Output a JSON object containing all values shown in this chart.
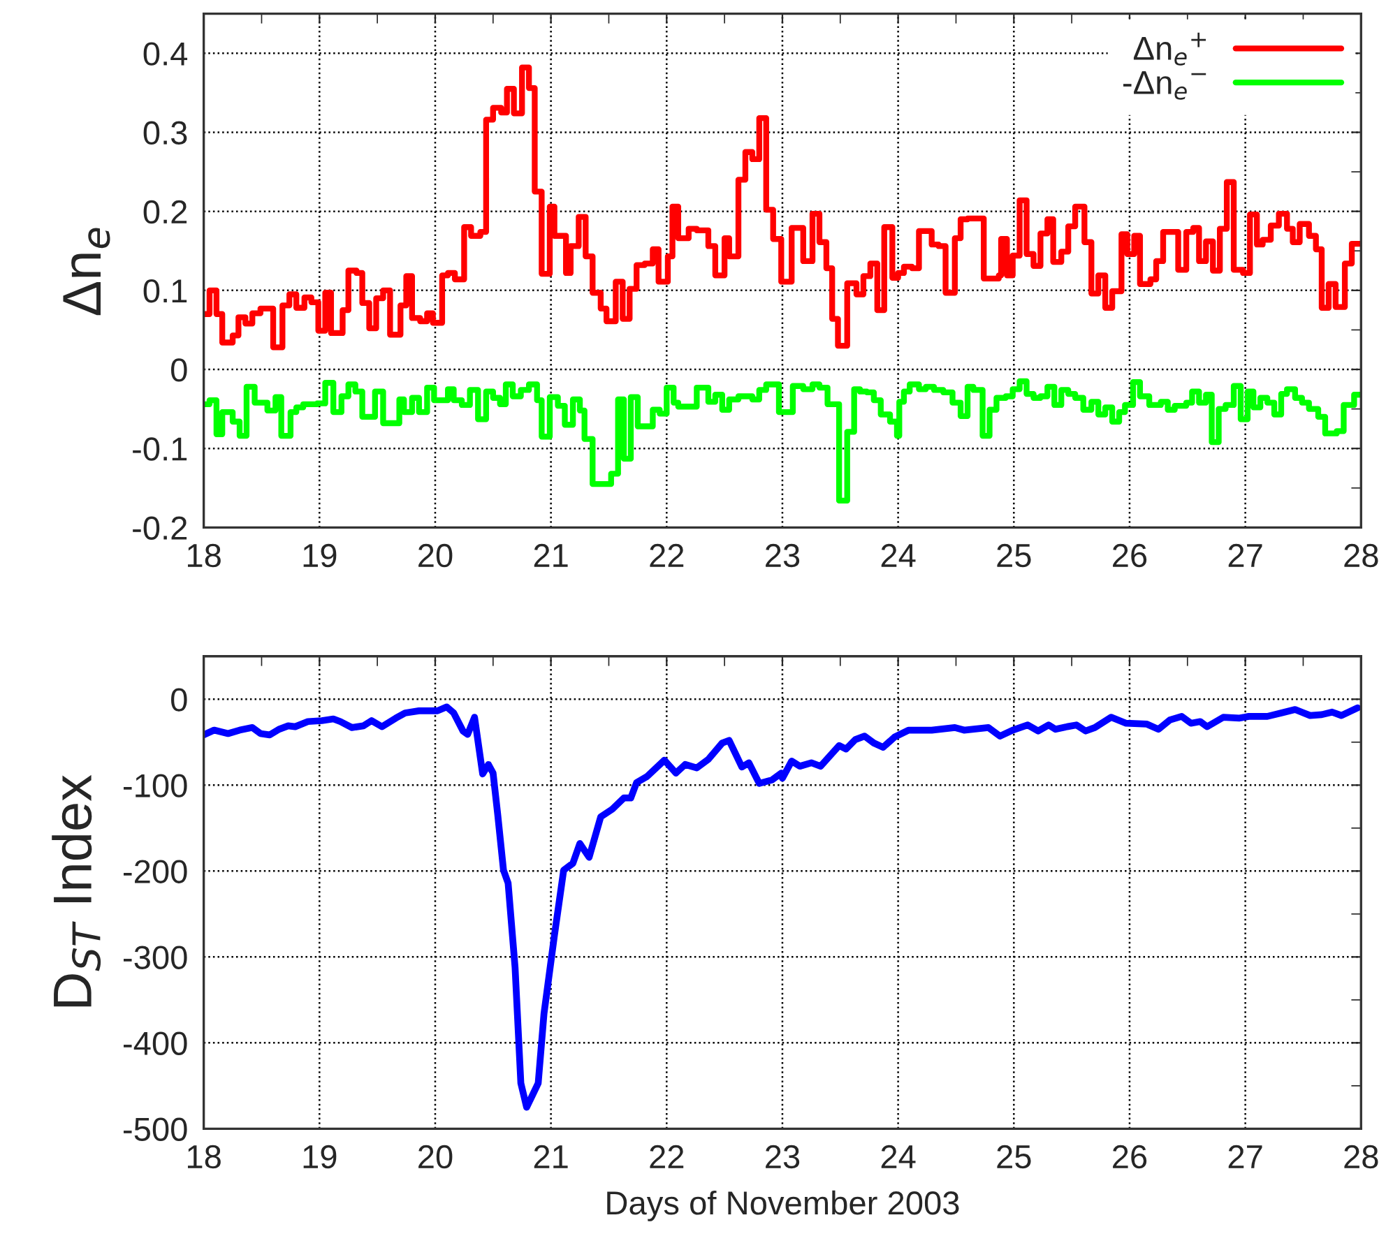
{
  "chart_data": [
    {
      "type": "step",
      "ylabel": "Δn$_{e}$",
      "xlim": [
        18,
        28
      ],
      "ylim": [
        -0.2,
        0.45
      ],
      "xticks": [
        18,
        {
          "value": 18.5,
          "label": null
        },
        19,
        {
          "value": 19.5,
          "label": null
        },
        20,
        {
          "value": 20.5,
          "label": null
        },
        21,
        {
          "value": 21.5,
          "label": null
        },
        22,
        {
          "value": 22.5,
          "label": null
        },
        23,
        {
          "value": 23.5,
          "label": null
        },
        24,
        {
          "value": 24.5,
          "label": null
        },
        25,
        {
          "value": 25.5,
          "label": null
        },
        26,
        {
          "value": 26.5,
          "label": null
        },
        27,
        {
          "value": 27.5,
          "label": null
        },
        28
      ],
      "yticks": [
        -0.2,
        {
          "value": -0.15,
          "label": null
        },
        -0.1,
        {
          "value": -0.05,
          "label": null
        },
        0,
        {
          "value": 0.05,
          "label": null
        },
        0.1,
        {
          "value": 0.15,
          "label": null
        },
        0.2,
        {
          "value": 0.25,
          "label": null
        },
        0.3,
        {
          "value": 0.35,
          "label": null
        },
        0.4
      ],
      "grid": true,
      "legend": "top right",
      "line_style": "solid",
      "series": [
        {
          "name": "Δn$_{e}$$^{+}$",
          "color": "#ff0000",
          "x": [
            18.0,
            18.05,
            18.11,
            18.16,
            18.25,
            18.3,
            18.36,
            18.42,
            18.49,
            18.6,
            18.68,
            18.74,
            18.8,
            18.87,
            18.93,
            18.99,
            19.05,
            19.1,
            19.2,
            19.25,
            19.32,
            19.37,
            19.43,
            19.49,
            19.55,
            19.61,
            19.7,
            19.75,
            19.8,
            19.87,
            19.93,
            19.98,
            20.06,
            20.11,
            20.17,
            20.25,
            20.31,
            20.39,
            20.44,
            20.5,
            20.57,
            20.62,
            20.68,
            20.75,
            20.81,
            20.86,
            20.92,
            20.99,
            21.03,
            21.13,
            21.17,
            21.24,
            21.3,
            21.36,
            21.43,
            21.48,
            21.56,
            21.62,
            21.68,
            21.74,
            21.81,
            21.88,
            21.93,
            22.01,
            22.05,
            22.1,
            22.19,
            22.26,
            22.36,
            22.42,
            22.5,
            22.54,
            22.62,
            22.68,
            22.74,
            22.8,
            22.86,
            22.92,
            22.99,
            23.08,
            23.18,
            23.26,
            23.32,
            23.38,
            23.43,
            23.48,
            23.56,
            23.64,
            23.7,
            23.76,
            23.82,
            23.88,
            23.95,
            24.0,
            24.05,
            24.12,
            24.18,
            24.29,
            24.35,
            24.41,
            24.49,
            24.54,
            24.6,
            24.74,
            24.87,
            24.89,
            24.94,
            24.99,
            25.05,
            25.11,
            25.17,
            25.23,
            25.29,
            25.34,
            25.41,
            25.47,
            25.53,
            25.61,
            25.67,
            25.73,
            25.79,
            25.85,
            25.93,
            25.98,
            26.04,
            26.09,
            26.18,
            26.23,
            26.29,
            26.42,
            26.49,
            26.55,
            26.6,
            26.66,
            26.72,
            26.78,
            26.84,
            26.9,
            26.98,
            27.04,
            27.1,
            27.15,
            27.22,
            27.29,
            27.36,
            27.41,
            27.47,
            27.55,
            27.61,
            27.66,
            27.72,
            27.78,
            27.86,
            27.92,
            28.0
          ],
          "values": [
            0.07,
            0.1,
            0.07,
            0.034,
            0.043,
            0.066,
            0.058,
            0.071,
            0.077,
            0.028,
            0.081,
            0.095,
            0.078,
            0.091,
            0.085,
            0.049,
            0.097,
            0.046,
            0.075,
            0.125,
            0.122,
            0.084,
            0.052,
            0.09,
            0.1,
            0.044,
            0.081,
            0.118,
            0.065,
            0.061,
            0.071,
            0.059,
            0.119,
            0.122,
            0.114,
            0.18,
            0.169,
            0.174,
            0.316,
            0.331,
            0.325,
            0.355,
            0.324,
            0.382,
            0.356,
            0.225,
            0.121,
            0.206,
            0.169,
            0.122,
            0.156,
            0.193,
            0.143,
            0.097,
            0.077,
            0.061,
            0.111,
            0.064,
            0.102,
            0.132,
            0.134,
            0.152,
            0.111,
            0.143,
            0.206,
            0.166,
            0.178,
            0.176,
            0.156,
            0.119,
            0.166,
            0.143,
            0.24,
            0.275,
            0.266,
            0.318,
            0.202,
            0.165,
            0.111,
            0.179,
            0.137,
            0.197,
            0.161,
            0.128,
            0.064,
            0.03,
            0.109,
            0.095,
            0.118,
            0.134,
            0.075,
            0.18,
            0.116,
            0.122,
            0.13,
            0.128,
            0.175,
            0.158,
            0.156,
            0.097,
            0.166,
            0.19,
            0.191,
            0.115,
            0.119,
            0.165,
            0.119,
            0.144,
            0.214,
            0.146,
            0.131,
            0.172,
            0.19,
            0.136,
            0.149,
            0.181,
            0.206,
            0.161,
            0.096,
            0.119,
            0.078,
            0.099,
            0.171,
            0.146,
            0.169,
            0.108,
            0.114,
            0.137,
            0.174,
            0.126,
            0.174,
            0.179,
            0.137,
            0.162,
            0.125,
            0.178,
            0.237,
            0.126,
            0.122,
            0.196,
            0.158,
            0.164,
            0.182,
            0.197,
            0.178,
            0.161,
            0.184,
            0.169,
            0.152,
            0.078,
            0.108,
            0.079,
            0.134,
            0.159,
            0.159
          ]
        },
        {
          "name": "-Δn$_{e}$$^{−}$",
          "color": "#00ff00",
          "x": [
            18.0,
            18.05,
            18.11,
            18.16,
            18.25,
            18.31,
            18.37,
            18.44,
            18.55,
            18.62,
            18.67,
            18.75,
            18.8,
            18.86,
            18.98,
            19.05,
            19.12,
            19.19,
            19.25,
            19.31,
            19.37,
            19.48,
            19.55,
            19.69,
            19.73,
            19.8,
            19.86,
            19.93,
            19.99,
            20.11,
            20.16,
            20.23,
            20.3,
            20.37,
            20.44,
            20.5,
            20.56,
            20.61,
            20.67,
            20.74,
            20.81,
            20.88,
            20.92,
            20.99,
            21.06,
            21.12,
            21.19,
            21.25,
            21.29,
            21.36,
            21.52,
            21.58,
            21.63,
            21.69,
            21.75,
            21.88,
            21.94,
            22.0,
            22.06,
            22.1,
            22.26,
            22.36,
            22.42,
            22.48,
            22.54,
            22.62,
            22.74,
            22.8,
            22.86,
            22.97,
            23.09,
            23.18,
            23.26,
            23.32,
            23.39,
            23.49,
            23.56,
            23.62,
            23.67,
            23.73,
            23.79,
            23.85,
            23.93,
            23.99,
            24.01,
            24.05,
            24.1,
            24.18,
            24.24,
            24.31,
            24.39,
            24.47,
            24.54,
            24.6,
            24.65,
            24.73,
            24.79,
            24.85,
            24.93,
            24.99,
            25.05,
            25.11,
            25.17,
            25.23,
            25.29,
            25.35,
            25.41,
            25.47,
            25.53,
            25.6,
            25.67,
            25.73,
            25.79,
            25.85,
            25.91,
            25.96,
            26.03,
            26.09,
            26.17,
            26.27,
            26.33,
            26.39,
            26.49,
            26.54,
            26.6,
            26.66,
            26.71,
            26.77,
            26.83,
            26.9,
            26.96,
            27.02,
            27.07,
            27.13,
            27.19,
            27.25,
            27.31,
            27.36,
            27.43,
            27.49,
            27.55,
            27.63,
            27.69,
            27.79,
            27.85,
            27.94,
            28.0
          ],
          "values": [
            -0.044,
            -0.039,
            -0.082,
            -0.054,
            -0.066,
            -0.084,
            -0.022,
            -0.042,
            -0.052,
            -0.035,
            -0.084,
            -0.054,
            -0.048,
            -0.044,
            -0.043,
            -0.017,
            -0.054,
            -0.034,
            -0.019,
            -0.028,
            -0.06,
            -0.028,
            -0.068,
            -0.038,
            -0.054,
            -0.036,
            -0.054,
            -0.023,
            -0.039,
            -0.025,
            -0.039,
            -0.045,
            -0.026,
            -0.063,
            -0.028,
            -0.036,
            -0.044,
            -0.019,
            -0.034,
            -0.026,
            -0.019,
            -0.039,
            -0.085,
            -0.035,
            -0.046,
            -0.07,
            -0.038,
            -0.052,
            -0.088,
            -0.145,
            -0.132,
            -0.038,
            -0.113,
            -0.035,
            -0.072,
            -0.051,
            -0.056,
            -0.023,
            -0.042,
            -0.047,
            -0.023,
            -0.041,
            -0.032,
            -0.051,
            -0.038,
            -0.034,
            -0.038,
            -0.026,
            -0.019,
            -0.054,
            -0.021,
            -0.025,
            -0.019,
            -0.023,
            -0.044,
            -0.166,
            -0.079,
            -0.025,
            -0.028,
            -0.029,
            -0.039,
            -0.057,
            -0.066,
            -0.084,
            -0.041,
            -0.028,
            -0.019,
            -0.025,
            -0.022,
            -0.026,
            -0.029,
            -0.042,
            -0.059,
            -0.022,
            -0.026,
            -0.084,
            -0.051,
            -0.036,
            -0.034,
            -0.025,
            -0.015,
            -0.031,
            -0.036,
            -0.034,
            -0.022,
            -0.045,
            -0.026,
            -0.031,
            -0.036,
            -0.051,
            -0.041,
            -0.057,
            -0.048,
            -0.066,
            -0.054,
            -0.045,
            -0.016,
            -0.034,
            -0.045,
            -0.041,
            -0.051,
            -0.046,
            -0.042,
            -0.028,
            -0.042,
            -0.032,
            -0.092,
            -0.05,
            -0.045,
            -0.021,
            -0.063,
            -0.028,
            -0.048,
            -0.036,
            -0.042,
            -0.057,
            -0.031,
            -0.025,
            -0.036,
            -0.042,
            -0.05,
            -0.06,
            -0.081,
            -0.078,
            -0.045,
            -0.032,
            -0.032
          ]
        }
      ]
    },
    {
      "type": "line",
      "ylabel": "D$_{ST}$ Index",
      "xlabel": "Days of November 2003",
      "xlim": [
        18,
        28
      ],
      "ylim": [
        -500,
        50
      ],
      "xticks": [
        18,
        {
          "value": 18.5,
          "label": null
        },
        19,
        {
          "value": 19.5,
          "label": null
        },
        20,
        {
          "value": 20.5,
          "label": null
        },
        21,
        {
          "value": 21.5,
          "label": null
        },
        22,
        {
          "value": 22.5,
          "label": null
        },
        23,
        {
          "value": 23.5,
          "label": null
        },
        24,
        {
          "value": 24.5,
          "label": null
        },
        25,
        {
          "value": 25.5,
          "label": null
        },
        26,
        {
          "value": 26.5,
          "label": null
        },
        27,
        {
          "value": 27.5,
          "label": null
        },
        28
      ],
      "yticks": [
        -500,
        {
          "value": -450,
          "label": null
        },
        -400,
        {
          "value": -350,
          "label": null
        },
        -300,
        {
          "value": -250,
          "label": null
        },
        -200,
        {
          "value": -150,
          "label": null
        },
        -100,
        {
          "value": -50,
          "label": null
        },
        0
      ],
      "grid": true,
      "line_style": "solid",
      "series": [
        {
          "color": "#0000ff",
          "x": [
            18.0,
            18.09,
            18.21,
            18.31,
            18.42,
            18.49,
            18.57,
            18.65,
            18.73,
            18.79,
            18.9,
            19.02,
            19.12,
            19.18,
            19.28,
            19.38,
            19.45,
            19.54,
            19.66,
            19.74,
            19.86,
            20.02,
            20.1,
            20.16,
            20.24,
            20.28,
            20.34,
            20.41,
            20.46,
            20.5,
            20.54,
            20.59,
            20.63,
            20.69,
            20.74,
            20.79,
            20.89,
            20.94,
            21.03,
            21.11,
            21.19,
            21.25,
            21.33,
            21.43,
            21.53,
            21.63,
            21.69,
            21.74,
            21.83,
            21.98,
            22.08,
            22.16,
            22.26,
            22.36,
            22.48,
            22.54,
            22.65,
            22.71,
            22.8,
            22.91,
            22.99,
            23.0,
            23.08,
            23.15,
            23.25,
            23.33,
            23.49,
            23.55,
            23.63,
            23.71,
            23.79,
            23.87,
            23.97,
            24.09,
            24.29,
            24.49,
            24.57,
            24.78,
            24.88,
            24.99,
            25.12,
            25.21,
            25.3,
            25.36,
            25.46,
            25.54,
            25.62,
            25.7,
            25.84,
            25.97,
            26.15,
            26.25,
            26.35,
            26.45,
            26.53,
            26.61,
            26.67,
            26.81,
            26.95,
            27.03,
            27.19,
            27.31,
            27.43,
            27.56,
            27.66,
            27.75,
            27.83,
            27.97
          ],
          "values": [
            -41.5,
            -36,
            -40,
            -36,
            -33,
            -40,
            -41.5,
            -35,
            -31,
            -32,
            -26,
            -25,
            -23,
            -26,
            -33,
            -31,
            -25,
            -32,
            -22,
            -16,
            -13.5,
            -13.5,
            -9,
            -16,
            -37,
            -41,
            -21,
            -87,
            -76,
            -86,
            -134,
            -199,
            -214,
            -312,
            -447,
            -475,
            -447,
            -366,
            -275,
            -199,
            -191,
            -168,
            -184,
            -137,
            -128,
            -115,
            -115,
            -97,
            -90,
            -71,
            -86,
            -76,
            -80,
            -70,
            -51,
            -48,
            -79,
            -74,
            -98,
            -94,
            -86,
            -92,
            -72,
            -78,
            -74,
            -78,
            -54,
            -58,
            -47,
            -43,
            -51,
            -56,
            -44,
            -36,
            -36,
            -33,
            -36,
            -33,
            -43,
            -36,
            -30,
            -37,
            -30,
            -35,
            -32,
            -30,
            -37,
            -33,
            -21,
            -28,
            -29,
            -35,
            -24,
            -20,
            -28,
            -26,
            -32,
            -21,
            -22,
            -20,
            -20,
            -16,
            -12,
            -19,
            -18,
            -15,
            -19,
            -10
          ]
        }
      ]
    }
  ]
}
